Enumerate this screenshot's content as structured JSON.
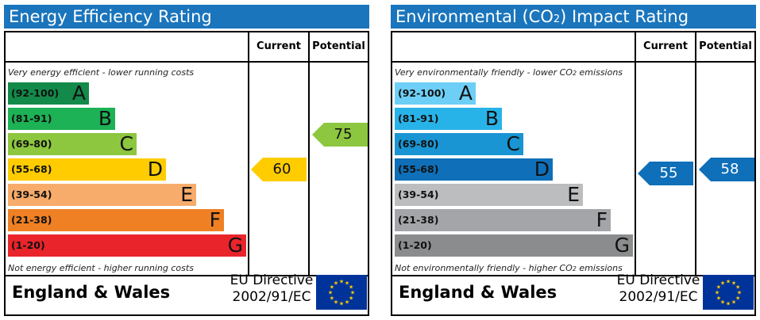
{
  "colors": {
    "title_bg": "#1a75bc",
    "eer": [
      "#138a4a",
      "#1db255",
      "#8dc63f",
      "#ffcc00",
      "#f7ac6b",
      "#ef8023",
      "#e9242b"
    ],
    "ei": [
      "#6dcff6",
      "#28b3e8",
      "#1995d3",
      "#0f6fb8",
      "#bbbdbf",
      "#a3a5a8",
      "#8a8c8e"
    ]
  },
  "energy": {
    "title": "Energy Efficiency Rating",
    "col_current": "Current",
    "col_potential": "Potential",
    "top_note": "Very energy efficient - lower running costs",
    "bottom_note": "Not energy efficient - higher running costs",
    "bands": [
      {
        "range": "(92-100)",
        "letter": "A"
      },
      {
        "range": "(81-91)",
        "letter": "B"
      },
      {
        "range": "(69-80)",
        "letter": "C"
      },
      {
        "range": "(55-68)",
        "letter": "D"
      },
      {
        "range": "(39-54)",
        "letter": "E"
      },
      {
        "range": "(21-38)",
        "letter": "F"
      },
      {
        "range": "(1-20)",
        "letter": "G"
      }
    ],
    "current": {
      "value": "60",
      "band": "D",
      "color": "#ffcc00"
    },
    "potential": {
      "value": "75",
      "band": "C",
      "color": "#8dc63f"
    },
    "region": "England & Wales",
    "directive_line1": "EU Directive",
    "directive_line2": "2002/91/EC"
  },
  "environment": {
    "title_prefix": "Environmental (CO",
    "title_sub": "2",
    "title_suffix": ") Impact Rating",
    "col_current": "Current",
    "col_potential": "Potential",
    "top_note_prefix": "Very environmentally friendly - lower CO",
    "top_note_sub": "2",
    "top_note_suffix": " emissions",
    "bottom_note_prefix": "Not environmentally friendly - higher CO",
    "bottom_note_sub": "2",
    "bottom_note_suffix": " emissions",
    "bands": [
      {
        "range": "(92-100)",
        "letter": "A"
      },
      {
        "range": "(81-91)",
        "letter": "B"
      },
      {
        "range": "(69-80)",
        "letter": "C"
      },
      {
        "range": "(55-68)",
        "letter": "D"
      },
      {
        "range": "(39-54)",
        "letter": "E"
      },
      {
        "range": "(21-38)",
        "letter": "F"
      },
      {
        "range": "(1-20)",
        "letter": "G"
      }
    ],
    "current": {
      "value": "55",
      "band": "D",
      "color": "#0f6fb8"
    },
    "potential": {
      "value": "58",
      "band": "D",
      "color": "#0f6fb8"
    },
    "region": "England & Wales",
    "directive_line1": "EU Directive",
    "directive_line2": "2002/91/EC"
  }
}
